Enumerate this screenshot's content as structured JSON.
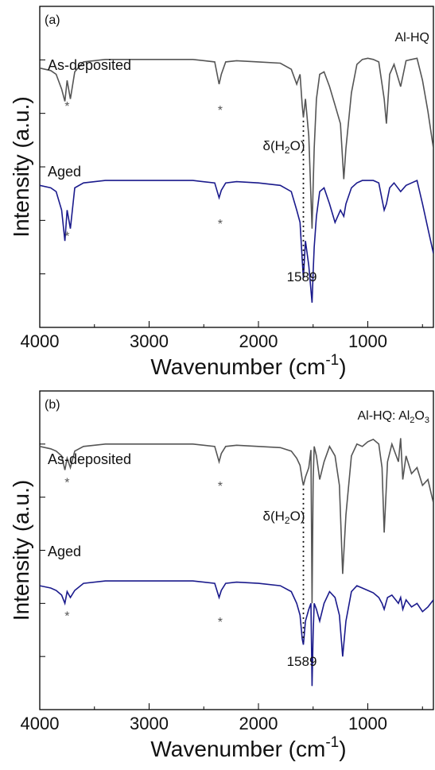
{
  "chart_data": [
    {
      "panel_label": "(a)",
      "sample": "Al-HQ",
      "type": "line",
      "xlabel": "Wavenumber (cm",
      "xlabel_sup": "-1",
      "xlabel_close": ")",
      "ylabel": "Intensity (a.u.)",
      "xlim": [
        4000,
        400
      ],
      "xticks": [
        4000,
        3000,
        2000,
        1000
      ],
      "grid": false,
      "annotation_label": "δ(H",
      "annotation_sub": "2",
      "annotation_tail": "O)",
      "annotation_x": 1589,
      "peak_label": "1589",
      "star_label": "*",
      "star_positions": [
        3750,
        2350
      ],
      "series": [
        {
          "name": "As-deposited",
          "color": "#555555",
          "x": [
            4000,
            3900,
            3850,
            3800,
            3770,
            3750,
            3720,
            3680,
            3600,
            3400,
            3000,
            2600,
            2400,
            2360,
            2340,
            2300,
            2200,
            2000,
            1800,
            1700,
            1650,
            1620,
            1600,
            1589,
            1570,
            1540,
            1510,
            1500,
            1490,
            1470,
            1440,
            1400,
            1350,
            1300,
            1250,
            1220,
            1200,
            1150,
            1100,
            1050,
            1000,
            950,
            900,
            850,
            830,
            800,
            760,
            700,
            650,
            600,
            550,
            500,
            450,
            400
          ],
          "y": [
            0.35,
            0.33,
            0.3,
            0.18,
            0.08,
            0.25,
            0.1,
            0.32,
            0.4,
            0.42,
            0.42,
            0.42,
            0.4,
            0.22,
            0.3,
            0.4,
            0.41,
            0.4,
            0.39,
            0.34,
            0.22,
            0.3,
            0.05,
            -0.05,
            0.1,
            -0.2,
            -0.95,
            -0.6,
            -0.3,
            0.1,
            0.3,
            0.32,
            0.2,
            0.05,
            -0.1,
            -0.55,
            -0.3,
            0.15,
            0.38,
            0.42,
            0.43,
            0.42,
            0.4,
            0.1,
            -0.1,
            0.3,
            0.38,
            0.2,
            0.41,
            0.42,
            0.43,
            0.25,
            0.0,
            -0.3
          ]
        },
        {
          "name": "Aged",
          "color": "#1a1a8c",
          "x": [
            4000,
            3900,
            3850,
            3800,
            3770,
            3750,
            3720,
            3680,
            3600,
            3400,
            3000,
            2600,
            2400,
            2360,
            2340,
            2300,
            2200,
            2000,
            1800,
            1700,
            1650,
            1620,
            1600,
            1589,
            1570,
            1540,
            1510,
            1500,
            1490,
            1470,
            1440,
            1400,
            1350,
            1300,
            1250,
            1220,
            1200,
            1150,
            1100,
            1050,
            1000,
            950,
            900,
            850,
            830,
            800,
            760,
            700,
            650,
            600,
            550,
            500,
            450,
            400
          ],
          "y": [
            -0.6,
            -0.62,
            -0.65,
            -0.8,
            -1.05,
            -0.8,
            -0.95,
            -0.62,
            -0.58,
            -0.56,
            -0.56,
            -0.56,
            -0.58,
            -0.7,
            -0.64,
            -0.58,
            -0.57,
            -0.58,
            -0.6,
            -0.65,
            -0.8,
            -0.9,
            -1.2,
            -1.35,
            -1.05,
            -1.25,
            -1.55,
            -1.3,
            -1.1,
            -0.85,
            -0.65,
            -0.62,
            -0.75,
            -0.9,
            -0.8,
            -0.85,
            -0.75,
            -0.62,
            -0.58,
            -0.56,
            -0.56,
            -0.56,
            -0.58,
            -0.8,
            -0.75,
            -0.62,
            -0.58,
            -0.65,
            -0.6,
            -0.58,
            -0.56,
            -0.75,
            -0.95,
            -1.15
          ]
        }
      ],
      "ylim": [
        -1.75,
        0.85
      ]
    },
    {
      "panel_label": "(b)",
      "sample": "Al-HQ: Al",
      "sample_sub": "2",
      "sample_tail": "O",
      "sample_sub2": "3",
      "type": "line",
      "xlabel": "Wavenumber (cm",
      "xlabel_sup": "-1",
      "xlabel_close": ")",
      "ylabel": "Intensity (a.u.)",
      "xlim": [
        4000,
        400
      ],
      "xticks": [
        4000,
        3000,
        2000,
        1000
      ],
      "grid": false,
      "annotation_label": "δ(H",
      "annotation_sub": "2",
      "annotation_tail": "O)",
      "annotation_x": 1589,
      "peak_label": "1589",
      "star_label": "*",
      "star_positions": [
        3750,
        2350
      ],
      "series": [
        {
          "name": "As-deposited",
          "color": "#555555",
          "x": [
            4000,
            3900,
            3850,
            3800,
            3770,
            3750,
            3720,
            3680,
            3600,
            3400,
            3000,
            2600,
            2400,
            2360,
            2340,
            2300,
            2200,
            2000,
            1800,
            1700,
            1650,
            1620,
            1600,
            1589,
            1570,
            1540,
            1520,
            1510,
            1500,
            1490,
            1470,
            1440,
            1400,
            1350,
            1300,
            1260,
            1230,
            1200,
            1150,
            1100,
            1050,
            1000,
            950,
            900,
            870,
            850,
            820,
            780,
            720,
            700,
            680,
            650,
            600,
            550,
            500,
            450,
            400
          ],
          "y": [
            0.38,
            0.36,
            0.34,
            0.3,
            0.18,
            0.28,
            0.2,
            0.34,
            0.38,
            0.4,
            0.4,
            0.4,
            0.38,
            0.25,
            0.32,
            0.38,
            0.39,
            0.38,
            0.37,
            0.34,
            0.28,
            0.22,
            0.1,
            0.05,
            0.12,
            0.2,
            0.35,
            -0.95,
            0.1,
            0.38,
            0.3,
            0.1,
            0.25,
            0.38,
            0.3,
            0.05,
            -0.7,
            -0.2,
            0.3,
            0.4,
            0.38,
            0.42,
            0.44,
            0.4,
            0.2,
            -0.35,
            0.25,
            0.4,
            0.25,
            0.45,
            0.1,
            0.3,
            0.15,
            0.2,
            0.05,
            0.1,
            -0.1
          ]
        },
        {
          "name": "Aged",
          "color": "#1a1a8c",
          "x": [
            4000,
            3900,
            3850,
            3800,
            3770,
            3750,
            3720,
            3680,
            3600,
            3400,
            3000,
            2600,
            2400,
            2360,
            2340,
            2300,
            2200,
            2000,
            1800,
            1700,
            1650,
            1620,
            1600,
            1589,
            1570,
            1540,
            1520,
            1510,
            1500,
            1490,
            1470,
            1440,
            1400,
            1350,
            1300,
            1260,
            1230,
            1200,
            1150,
            1100,
            1050,
            1000,
            950,
            900,
            870,
            850,
            820,
            780,
            720,
            700,
            680,
            650,
            600,
            550,
            500,
            450,
            400
          ],
          "y": [
            -0.8,
            -0.82,
            -0.84,
            -0.88,
            -0.95,
            -0.85,
            -0.9,
            -0.84,
            -0.78,
            -0.76,
            -0.76,
            -0.76,
            -0.78,
            -0.9,
            -0.84,
            -0.78,
            -0.77,
            -0.78,
            -0.8,
            -0.85,
            -0.95,
            -1.05,
            -1.25,
            -1.3,
            -1.1,
            -1.0,
            -0.95,
            -1.65,
            -1.2,
            -0.95,
            -1.0,
            -1.1,
            -0.95,
            -0.85,
            -0.9,
            -1.05,
            -1.4,
            -1.1,
            -0.85,
            -0.8,
            -0.82,
            -0.84,
            -0.86,
            -0.9,
            -0.95,
            -1.0,
            -0.9,
            -0.88,
            -0.95,
            -0.9,
            -1.0,
            -0.92,
            -0.98,
            -0.95,
            -1.02,
            -0.98,
            -0.92
          ]
        }
      ],
      "ylim": [
        -1.85,
        0.85
      ]
    }
  ]
}
